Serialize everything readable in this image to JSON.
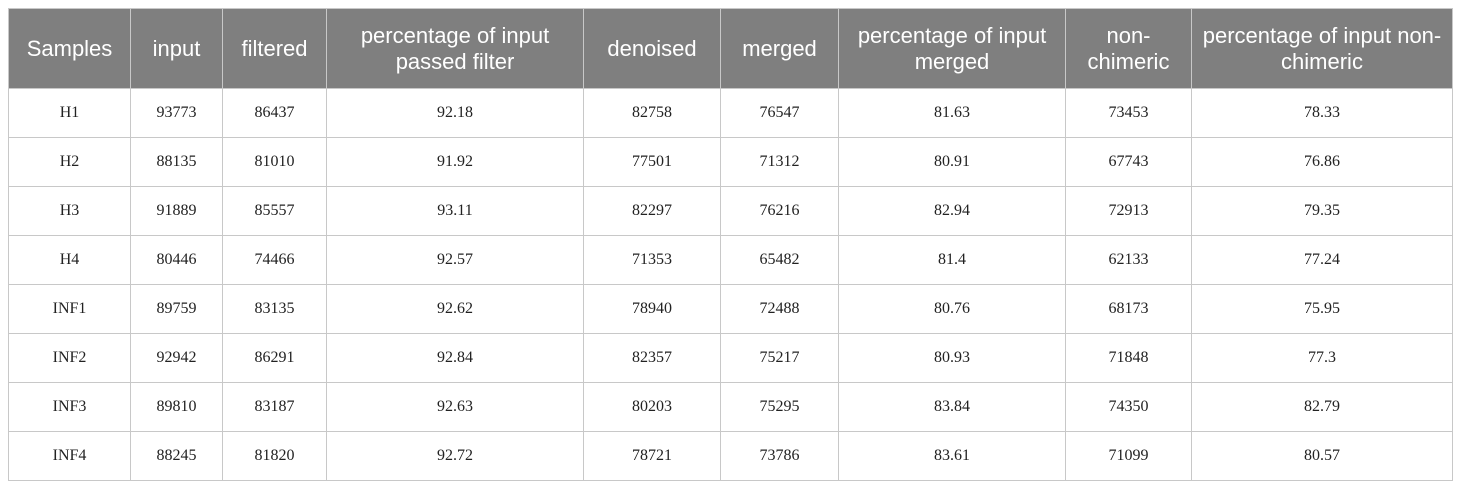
{
  "table": {
    "header": [
      "Samples",
      "input",
      "filtered",
      "percentage of input passed filter",
      "denoised",
      "merged",
      "percentage of input merged",
      "non-chimeric",
      "percentage of input non-chimeric"
    ],
    "rows": [
      [
        "H1",
        "93773",
        "86437",
        "92.18",
        "82758",
        "76547",
        "81.63",
        "73453",
        "78.33"
      ],
      [
        "H2",
        "88135",
        "81010",
        "91.92",
        "77501",
        "71312",
        "80.91",
        "67743",
        "76.86"
      ],
      [
        "H3",
        "91889",
        "85557",
        "93.11",
        "82297",
        "76216",
        "82.94",
        "72913",
        "79.35"
      ],
      [
        "H4",
        "80446",
        "74466",
        "92.57",
        "71353",
        "65482",
        "81.4",
        "62133",
        "77.24"
      ],
      [
        "INF1",
        "89759",
        "83135",
        "92.62",
        "78940",
        "72488",
        "80.76",
        "68173",
        "75.95"
      ],
      [
        "INF2",
        "92942",
        "86291",
        "92.84",
        "82357",
        "75217",
        "80.93",
        "71848",
        "77.3"
      ],
      [
        "INF3",
        "89810",
        "83187",
        "92.63",
        "80203",
        "75295",
        "83.84",
        "74350",
        "82.79"
      ],
      [
        "INF4",
        "88245",
        "81820",
        "92.72",
        "78721",
        "73786",
        "83.61",
        "71099",
        "80.57"
      ]
    ]
  }
}
